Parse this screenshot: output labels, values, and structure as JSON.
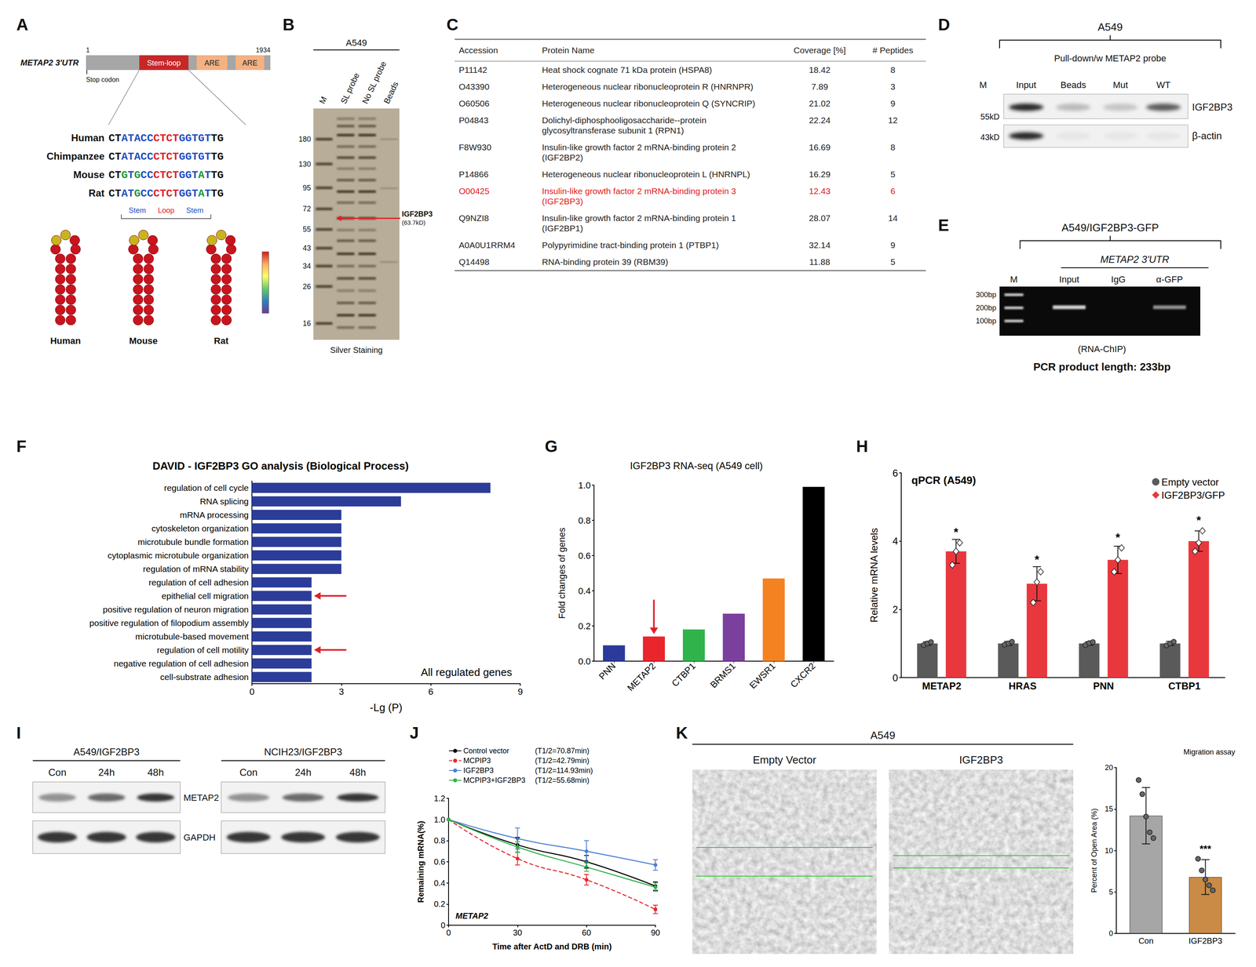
{
  "figure": {
    "A": {
      "letter": "A",
      "gene": "METAP2 3'UTR",
      "start": 1,
      "end": 1934,
      "regions": [
        "Stem-loop",
        "ARE",
        "ARE"
      ],
      "stop_codon": "Stop codon",
      "alignment": [
        {
          "species": "Human",
          "sequence": "CTATACCCTCTGGTGTTG"
        },
        {
          "species": "Chimpanzee",
          "sequence": "CTATACCCTCTGGTGTTG"
        },
        {
          "species": "Mouse",
          "sequence": "CTGTGCCCTCTGGTATTG"
        },
        {
          "species": "Rat",
          "sequence": "CTATGCCCTCTGGTATTG"
        }
      ],
      "structure": [
        "Stem",
        "Loop",
        "Stem"
      ],
      "hairpins": [
        "Human",
        "Mouse",
        "Rat"
      ]
    },
    "B": {
      "letter": "B",
      "cell": "A549",
      "lanes": [
        "M",
        "SL probe",
        "No SL probe",
        "Beads"
      ],
      "markers": [
        180,
        130,
        95,
        72,
        55,
        43,
        34,
        26,
        16
      ],
      "band_label": "IGF2BP3",
      "band_size": "(63.7kD)",
      "band_kd": 63.7,
      "caption": "Silver Staining"
    },
    "C": {
      "letter": "C",
      "columns": [
        "Accession",
        "Protein Name",
        "Coverage [%]",
        "# Peptides"
      ],
      "rows": [
        {
          "accession": "P11142",
          "protein": "Heat shock cognate 71 kDa protein (HSPA8)",
          "coverage": 18.42,
          "peptides": 8
        },
        {
          "accession": "O43390",
          "protein": "Heterogeneous nuclear ribonucleoprotein R (HNRNPR)",
          "coverage": 7.89,
          "peptides": 3
        },
        {
          "accession": "O60506",
          "protein": "Heterogeneous nuclear ribonucleoprotein Q (SYNCRIP)",
          "coverage": 21.02,
          "peptides": 9
        },
        {
          "accession": "P04843",
          "protein": "Dolichyl-diphosphooligosaccharide--protein glycosyltransferase subunit 1 (RPN1)",
          "coverage": 22.24,
          "peptides": 12
        },
        {
          "accession": "F8W930",
          "protein": "Insulin-like growth factor 2 mRNA-binding protein 2 (IGF2BP2)",
          "coverage": 16.69,
          "peptides": 8
        },
        {
          "accession": "P14866",
          "protein": "Heterogeneous nuclear ribonucleoprotein L (HNRNPL)",
          "coverage": 16.29,
          "peptides": 5
        },
        {
          "accession": "O00425",
          "protein": "Insulin-like growth factor 2 mRNA-binding protein 3 (IGF2BP3)",
          "coverage": 12.43,
          "peptides": 6,
          "color": "#e02020"
        },
        {
          "accession": "Q9NZI8",
          "protein": "Insulin-like growth factor 2 mRNA-binding protein 1 (IGF2BP1)",
          "coverage": 28.07,
          "peptides": 14
        },
        {
          "accession": "A0A0U1RRM4",
          "protein": "Polypyrimidine tract-binding protein 1 (PTBP1)",
          "coverage": 32.14,
          "peptides": 9
        },
        {
          "accession": "Q14498",
          "protein": "RNA-binding protein 39 (RBM39)",
          "coverage": 11.88,
          "peptides": 5
        }
      ]
    },
    "D": {
      "letter": "D",
      "cell": "A549",
      "header": "Pull-down/w METAP2 probe",
      "lanes": [
        "M",
        "Input",
        "Beads",
        "Mut",
        "WT"
      ],
      "markers": [
        "55kD",
        "43kD"
      ],
      "bands": [
        "IGF2BP3",
        "β-actin"
      ]
    },
    "E": {
      "letter": "E",
      "title": "A549/IGF2BP3-GFP",
      "subtitle": "METAP2 3'UTR",
      "lanes": [
        "M",
        "Input",
        "IgG",
        "α-GFP"
      ],
      "ladder": [
        "300bp",
        "200bp",
        "100bp"
      ],
      "method": "(RNA-ChIP)",
      "note": "PCR product length: 233bp"
    },
    "I": {
      "letter": "I",
      "blots": [
        {
          "title": "A549/IGF2BP3"
        },
        {
          "title": "NCIH23/IGF2BP3"
        }
      ],
      "lanes": [
        "Con",
        "24h",
        "48h"
      ],
      "bands": [
        "METAP2",
        "GAPDH"
      ]
    },
    "K": {
      "letter": "K",
      "title": "A549",
      "images": [
        "Empty Vector",
        "IGF2BP3"
      ]
    }
  },
  "chart_data": [
    {
      "letter": "F",
      "type": "bar",
      "orientation": "horizontal",
      "title": "DAVID - IGF2BP3 GO analysis (Biological Process)",
      "categories": [
        "regulation of cell cycle",
        "RNA splicing",
        "mRNA processing",
        "cytoskeleton organization",
        "microtubule bundle formation",
        "cytoplasmic microtubule organization",
        "regulation of mRNA stability",
        "regulation of cell adhesion",
        "epithelial cell migration",
        "positive regulation of neuron migration",
        "positive regulation of filopodium assembly",
        "microtubule-based movement",
        "regulation of cell motility",
        "negative regulation of cell adhesion",
        "cell-substrate adhesion"
      ],
      "values": [
        8,
        5,
        3,
        3,
        3,
        3,
        3,
        2,
        2,
        2,
        2,
        2,
        2,
        2,
        2
      ],
      "color": "#2b3d99",
      "xlabel": "-Lg (P)",
      "xlim": [
        0,
        9
      ],
      "xticks": [
        0,
        3,
        6,
        9
      ],
      "annotations": [
        "All regulated genes"
      ],
      "arrows": [
        "epithelial cell migration",
        "regulation of cell motility"
      ],
      "grid": false
    },
    {
      "letter": "G",
      "type": "bar",
      "title": "IGF2BP3 RNA-seq (A549 cell)",
      "categories": [
        "PNN",
        "METAP2",
        "CTBP1",
        "BRMS1",
        "EWSR1",
        "CXCR2"
      ],
      "values": [
        0.09,
        0.14,
        0.18,
        0.27,
        0.47,
        0.99
      ],
      "colors": [
        "#2b3a9b",
        "#e8262b",
        "#2fb34a",
        "#7b3f9e",
        "#f58220",
        "#000000"
      ],
      "ylabel": "Fold changes of genes",
      "ylim": [
        0,
        1
      ],
      "yticks": [
        {
          "value": 0,
          "label": "0.0"
        },
        0.2,
        0.4,
        0.6,
        0.8,
        {
          "value": 1,
          "label": "1.0"
        }
      ],
      "arrows": [
        "METAP2"
      ],
      "grid": false
    },
    {
      "letter": "H",
      "type": "bar",
      "title": "qPCR (A549)",
      "categories": [
        "METAP2",
        "HRAS",
        "PNN",
        "CTBP1"
      ],
      "series": [
        {
          "name": "Empty vector",
          "color": "#5a5a5a",
          "marker": "circle",
          "values": [
            1,
            1,
            1,
            1
          ],
          "errors": [
            0.05,
            0.06,
            0.05,
            0.06
          ],
          "points": [
            [
              0.95,
              1.0,
              1.04
            ],
            [
              0.96,
              1.0,
              1.05
            ],
            [
              0.95,
              1.01,
              1.04
            ],
            [
              0.94,
              1.0,
              1.05
            ]
          ]
        },
        {
          "name": "IGF2BP3/GFP",
          "color": "#e8383d",
          "marker": "diamond",
          "values": [
            3.7,
            2.75,
            3.45,
            4.0
          ],
          "errors": [
            0.35,
            0.5,
            0.4,
            0.3
          ],
          "points": [
            [
              3.3,
              3.7,
              3.95
            ],
            [
              2.2,
              2.8,
              3.1
            ],
            [
              3.1,
              3.45,
              3.8
            ],
            [
              3.7,
              3.95,
              4.3
            ]
          ],
          "annotations": [
            "*",
            "*",
            "*",
            "*"
          ]
        }
      ],
      "ylabel": "Relative mRNA levels",
      "ylim": [
        0,
        6
      ],
      "yticks": [
        0,
        2,
        4,
        6
      ],
      "legend": "top-right",
      "grid": false
    },
    {
      "letter": "J",
      "type": "line",
      "x": [
        0,
        30,
        60,
        90
      ],
      "series": [
        {
          "name": "Control vector",
          "half_life": "(T1/2=70.87min)",
          "color": "#000000",
          "line_style": "solid",
          "marker": "circle",
          "values": [
            1,
            0.76,
            0.6,
            0.37
          ],
          "errors": [
            0,
            0.07,
            0.06,
            0.04
          ]
        },
        {
          "name": "MCPIP3",
          "half_life": "(T1/2=42.79min)",
          "color": "#e8262b",
          "line_style": "dashed",
          "marker": "circle",
          "values": [
            1,
            0.63,
            0.43,
            0.15
          ],
          "errors": [
            0,
            0.06,
            0.05,
            0.04
          ]
        },
        {
          "name": "IGF2BP3",
          "half_life": "(T1/2=114.93min)",
          "color": "#4a7fd4",
          "line_style": "solid",
          "marker": "circle",
          "values": [
            1,
            0.82,
            0.7,
            0.57
          ],
          "errors": [
            0,
            0.1,
            0.1,
            0.05
          ]
        },
        {
          "name": "MCPIP3+IGF2BP3",
          "half_life": "(T1/2=55.68min)",
          "color": "#2fb34a",
          "line_style": "solid",
          "marker": "circle",
          "values": [
            1,
            0.74,
            0.55,
            0.36
          ],
          "errors": [
            0,
            0.05,
            0.04,
            0.04
          ]
        }
      ],
      "xlabel": "Time after ActD and DRB (min)",
      "ylabel": "Remaining mRNA(%)",
      "xlim": [
        0,
        90
      ],
      "xticks": [
        0,
        30,
        60,
        90
      ],
      "ylim": [
        0,
        1.2
      ],
      "yticks": [
        0,
        0.2,
        0.4,
        0.6,
        0.8,
        {
          "value": 1,
          "label": "1.0"
        },
        1.2
      ],
      "annotations": [
        "METAP2"
      ],
      "legend": "top",
      "grid": false
    },
    {
      "type": "bar",
      "title": "Migration assay",
      "categories": [
        "Con",
        "IGF2BP3"
      ],
      "values": [
        14.2,
        6.8
      ],
      "errors": [
        3.4,
        2.1
      ],
      "points": [
        [
          18.5,
          16.8,
          14.1,
          12.2,
          11.5
        ],
        [
          9,
          7.6,
          6.5,
          5.8,
          5.2
        ]
      ],
      "marker": "circle",
      "colors": [
        "#a6a6a6",
        "#c98b46"
      ],
      "ylabel": "Percent of Open Area (%)",
      "ylim": [
        0,
        20
      ],
      "yticks": [
        0,
        5,
        10,
        15,
        20
      ],
      "annotations": [
        null,
        "***"
      ],
      "grid": false
    }
  ]
}
